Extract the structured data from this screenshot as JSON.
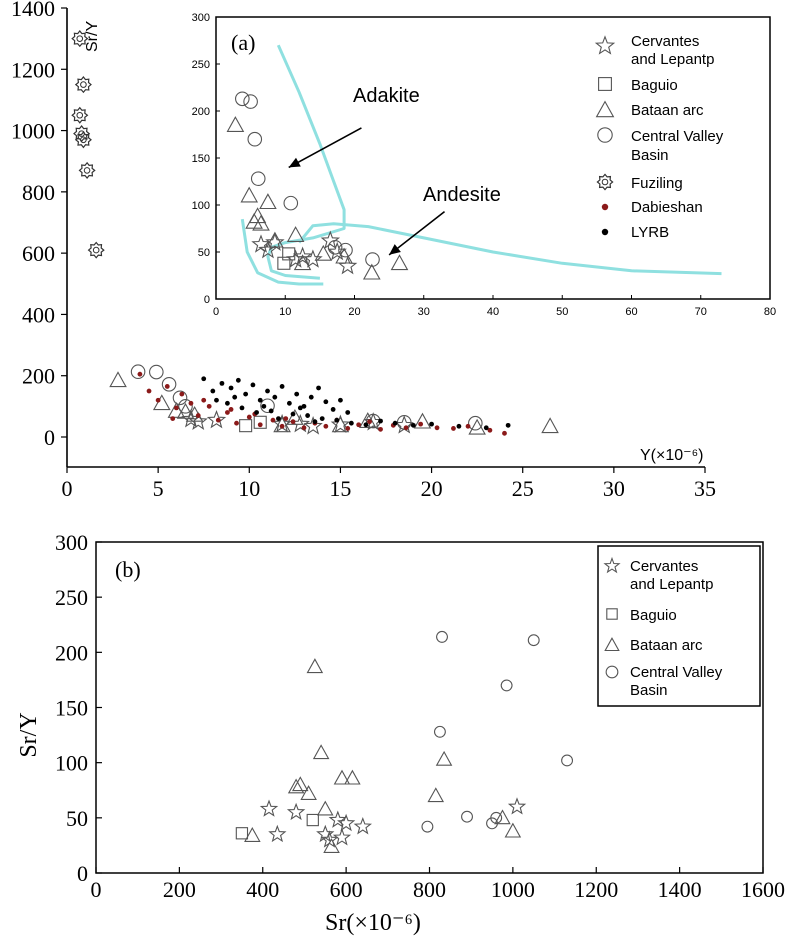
{
  "figure": {
    "background": "#ffffff",
    "curve_color": "#8fe0e0",
    "dabie_color": "#8b1a1a",
    "lyrb_color": "#000000"
  },
  "chart_data": [
    {
      "id": "main",
      "type": "scatter",
      "title": "",
      "xlabel": "Y(×10⁻⁶)",
      "ylabel": "Sr/Y",
      "xlim": [
        0,
        35
      ],
      "ylim": [
        -100,
        1400
      ],
      "xticks": [
        0,
        5,
        10,
        15,
        20,
        25,
        30,
        35
      ],
      "yticks": [
        0,
        200,
        400,
        600,
        800,
        1000,
        1200,
        1400
      ],
      "series": [
        {
          "name": "Cervantes and Lepantp",
          "marker": "star",
          "points": [
            [
              6.8,
              58
            ],
            [
              7.2,
              50
            ],
            [
              8.2,
              55
            ],
            [
              11.8,
              42
            ],
            [
              12.8,
              42
            ],
            [
              13.5,
              35
            ],
            [
              15.0,
              40
            ],
            [
              16.8,
              48
            ],
            [
              18.5,
              38
            ]
          ]
        },
        {
          "name": "Baguio",
          "marker": "square",
          "points": [
            [
              9.8,
              37
            ],
            [
              10.6,
              48
            ]
          ]
        },
        {
          "name": "Bataan arc",
          "marker": "triangle",
          "points": [
            [
              2.8,
              185
            ],
            [
              5.2,
              110
            ],
            [
              6.0,
              85
            ],
            [
              6.5,
              82
            ],
            [
              7.0,
              72
            ],
            [
              11.8,
              38
            ],
            [
              12.5,
              62
            ],
            [
              15.0,
              38
            ],
            [
              16.5,
              52
            ],
            [
              19.5,
              50
            ],
            [
              22.5,
              30
            ],
            [
              26.5,
              35
            ]
          ]
        },
        {
          "name": "Central Valley Basin",
          "marker": "circle",
          "points": [
            [
              3.9,
              213
            ],
            [
              4.9,
              212
            ],
            [
              5.6,
              172
            ],
            [
              6.2,
              128
            ],
            [
              6.5,
              100
            ],
            [
              11.0,
              102
            ],
            [
              16.8,
              52
            ],
            [
              18.5,
              48
            ],
            [
              22.4,
              45
            ]
          ]
        },
        {
          "name": "Fuziling",
          "marker": "gear",
          "points": [
            [
              0.7,
              1300
            ],
            [
              0.9,
              1150
            ],
            [
              0.7,
              1050
            ],
            [
              0.8,
              990
            ],
            [
              0.9,
              970
            ],
            [
              1.1,
              870
            ],
            [
              1.6,
              610
            ]
          ]
        },
        {
          "name": "Dabieshan",
          "marker": "dot",
          "color": "#8b1a1a",
          "points": [
            [
              4.0,
              205
            ],
            [
              4.5,
              150
            ],
            [
              5.0,
              120
            ],
            [
              5.5,
              165
            ],
            [
              6.0,
              95
            ],
            [
              6.3,
              140
            ],
            [
              6.8,
              110
            ],
            [
              7.2,
              70
            ],
            [
              7.8,
              100
            ],
            [
              8.3,
              55
            ],
            [
              8.8,
              80
            ],
            [
              9.3,
              45
            ],
            [
              10.0,
              65
            ],
            [
              10.6,
              40
            ],
            [
              11.3,
              55
            ],
            [
              11.8,
              35
            ],
            [
              12.4,
              50
            ],
            [
              13.0,
              30
            ],
            [
              13.6,
              45
            ],
            [
              14.2,
              35
            ],
            [
              14.8,
              55
            ],
            [
              15.4,
              28
            ],
            [
              16.0,
              40
            ],
            [
              16.6,
              50
            ],
            [
              17.2,
              25
            ],
            [
              17.9,
              38
            ],
            [
              18.6,
              30
            ],
            [
              19.4,
              42
            ],
            [
              20.3,
              30
            ],
            [
              21.2,
              28
            ],
            [
              22.0,
              35
            ],
            [
              23.2,
              22
            ],
            [
              24.0,
              12
            ],
            [
              5.8,
              60
            ],
            [
              7.5,
              120
            ],
            [
              9.0,
              90
            ],
            [
              10.3,
              75
            ],
            [
              12.0,
              60
            ]
          ]
        },
        {
          "name": "LYRB",
          "marker": "dot",
          "color": "#000000",
          "points": [
            [
              7.5,
              190
            ],
            [
              8.0,
              150
            ],
            [
              8.5,
              175
            ],
            [
              9.0,
              160
            ],
            [
              9.4,
              185
            ],
            [
              9.8,
              140
            ],
            [
              10.2,
              170
            ],
            [
              10.6,
              120
            ],
            [
              11.0,
              150
            ],
            [
              11.4,
              130
            ],
            [
              11.8,
              165
            ],
            [
              12.2,
              110
            ],
            [
              12.6,
              140
            ],
            [
              13.0,
              100
            ],
            [
              13.4,
              130
            ],
            [
              13.8,
              160
            ],
            [
              14.2,
              115
            ],
            [
              14.6,
              90
            ],
            [
              15.0,
              120
            ],
            [
              15.4,
              80
            ],
            [
              8.8,
              110
            ],
            [
              9.6,
              95
            ],
            [
              10.4,
              80
            ],
            [
              11.2,
              85
            ],
            [
              12.4,
              75
            ],
            [
              13.2,
              70
            ],
            [
              14.0,
              60
            ],
            [
              14.8,
              55
            ],
            [
              15.6,
              45
            ],
            [
              16.4,
              40
            ],
            [
              17.2,
              52
            ],
            [
              18.0,
              45
            ],
            [
              19.0,
              38
            ],
            [
              20.0,
              42
            ],
            [
              21.5,
              35
            ],
            [
              23.0,
              30
            ],
            [
              24.2,
              38
            ],
            [
              8.2,
              120
            ],
            [
              9.2,
              130
            ],
            [
              10.8,
              100
            ],
            [
              11.6,
              60
            ],
            [
              12.8,
              95
            ],
            [
              13.6,
              50
            ]
          ]
        }
      ]
    },
    {
      "id": "inset",
      "type": "scatter",
      "title": "",
      "panel_label": "(a)",
      "xlim": [
        0,
        80
      ],
      "ylim": [
        0,
        300
      ],
      "xticks": [
        0,
        10,
        20,
        30,
        40,
        50,
        60,
        70,
        80
      ],
      "yticks": [
        0,
        50,
        100,
        150,
        200,
        250,
        300
      ],
      "fields": [
        {
          "name": "Adakite",
          "points": [
            [
              9,
              270
            ],
            [
              12,
              220
            ],
            [
              15,
              165
            ],
            [
              17,
              125
            ],
            [
              18.5,
              95
            ],
            [
              18.5,
              75
            ],
            [
              14,
              65
            ],
            [
              10,
              60
            ],
            [
              8,
              55
            ],
            [
              7.5,
              45
            ],
            [
              8,
              30
            ],
            [
              10,
              25
            ],
            [
              15,
              22
            ]
          ]
        },
        {
          "name": "Andesite",
          "points": [
            [
              3.8,
              85
            ],
            [
              4.5,
              50
            ],
            [
              6,
              28
            ],
            [
              9,
              18
            ],
            [
              12,
              16
            ],
            [
              15.5,
              16
            ]
          ]
        },
        {
          "name": "Andesite upper",
          "points": [
            [
              12,
              60
            ],
            [
              14,
              78
            ],
            [
              17,
              80
            ],
            [
              22,
              77
            ],
            [
              30,
              65
            ],
            [
              40,
              50
            ],
            [
              50,
              38
            ],
            [
              60,
              30
            ],
            [
              73,
              27
            ]
          ]
        }
      ],
      "annotations": [
        {
          "text": "Adakite",
          "x": 21,
          "y": 182,
          "ax": 10.5,
          "ay": 140
        },
        {
          "text": "Andesite",
          "x": 33,
          "y": 93,
          "ax": 25,
          "ay": 47
        }
      ],
      "series": [
        {
          "name": "Cervantes and Lepantp",
          "marker": "star",
          "points": [
            [
              6.5,
              58
            ],
            [
              7.5,
              52
            ],
            [
              8.5,
              60
            ],
            [
              11.5,
              42
            ],
            [
              12.5,
              45
            ],
            [
              14,
              42
            ],
            [
              16.5,
              62
            ],
            [
              17.5,
              50
            ],
            [
              19,
              35
            ]
          ]
        },
        {
          "name": "Baguio",
          "marker": "square",
          "points": [
            [
              9.8,
              38
            ],
            [
              10.5,
              48
            ]
          ]
        },
        {
          "name": "Bataan arc",
          "marker": "triangle",
          "points": [
            [
              2.8,
              185
            ],
            [
              4.8,
              110
            ],
            [
              5.5,
              82
            ],
            [
              6.0,
              88
            ],
            [
              6.5,
              80
            ],
            [
              7.5,
              103
            ],
            [
              8.5,
              62
            ],
            [
              11.5,
              68
            ],
            [
              12.5,
              38
            ],
            [
              15.5,
              48
            ],
            [
              18.5,
              45
            ],
            [
              22.5,
              28
            ],
            [
              26.5,
              38
            ]
          ]
        },
        {
          "name": "Central Valley Basin",
          "marker": "circle",
          "points": [
            [
              3.8,
              213
            ],
            [
              5.0,
              210
            ],
            [
              5.6,
              170
            ],
            [
              6.1,
              128
            ],
            [
              10.8,
              102
            ],
            [
              17.2,
              55
            ],
            [
              18.7,
              52
            ],
            [
              22.6,
              42
            ]
          ]
        }
      ],
      "legend": {
        "placement": "top-right"
      }
    },
    {
      "id": "panel-b",
      "type": "scatter",
      "title": "",
      "panel_label": "(b)",
      "xlabel": "Sr(×10⁻⁶)",
      "ylabel": "Sr/Y",
      "xlim": [
        0,
        1600
      ],
      "ylim": [
        0,
        300
      ],
      "xticks": [
        0,
        200,
        400,
        600,
        800,
        1000,
        1200,
        1400,
        1600
      ],
      "yticks": [
        0,
        50,
        100,
        150,
        200,
        250,
        300
      ],
      "series": [
        {
          "name": "Cervantes and Lepantp",
          "marker": "star",
          "points": [
            [
              415,
              58
            ],
            [
              435,
              35
            ],
            [
              480,
              55
            ],
            [
              550,
              35
            ],
            [
              580,
              48
            ],
            [
              600,
              45
            ],
            [
              640,
              42
            ],
            [
              560,
              30
            ],
            [
              590,
              32
            ],
            [
              1010,
              60
            ]
          ]
        },
        {
          "name": "Baguio",
          "marker": "square",
          "points": [
            [
              350,
              36
            ],
            [
              520,
              48
            ]
          ]
        },
        {
          "name": "Bataan arc",
          "marker": "triangle",
          "points": [
            [
              375,
              34
            ],
            [
              480,
              78
            ],
            [
              490,
              80
            ],
            [
              510,
              72
            ],
            [
              525,
              187
            ],
            [
              540,
              109
            ],
            [
              550,
              58
            ],
            [
              565,
              24
            ],
            [
              590,
              86
            ],
            [
              615,
              86
            ],
            [
              815,
              70
            ],
            [
              835,
              103
            ],
            [
              975,
              50
            ],
            [
              1000,
              38
            ]
          ]
        },
        {
          "name": "Central Valley Basin",
          "marker": "circle",
          "points": [
            [
              795,
              42
            ],
            [
              825,
              128
            ],
            [
              830,
              214
            ],
            [
              890,
              51
            ],
            [
              950,
              45
            ],
            [
              960,
              50
            ],
            [
              985,
              170
            ],
            [
              1050,
              211
            ],
            [
              1130,
              102
            ]
          ]
        }
      ],
      "legend": {
        "placement": "top-right"
      }
    }
  ],
  "legend_inset": {
    "l1a": "Cervantes",
    "l1b": "and Lepantp",
    "l2": "Baguio",
    "l3": "Bataan arc",
    "l4a": "Central Valley",
    "l4b": "Basin",
    "l5": "Fuziling",
    "l6": "Dabieshan",
    "l7": "LYRB"
  },
  "legend_b": {
    "l1a": "Cervantes",
    "l1b": "and Lepantp",
    "l2": "Baguio",
    "l3": "Bataan arc",
    "l4a": "Central Valley",
    "l4b": "Basin"
  },
  "labels": {
    "main_x": "Y(×10⁻⁶)",
    "main_y": "Sr/Y",
    "inset_panel": "(a)",
    "adakite": "Adakite",
    "andesite": "Andesite",
    "b_panel": "(b)",
    "b_x": "Sr(×10⁻⁶)",
    "b_y": "Sr/Y"
  }
}
